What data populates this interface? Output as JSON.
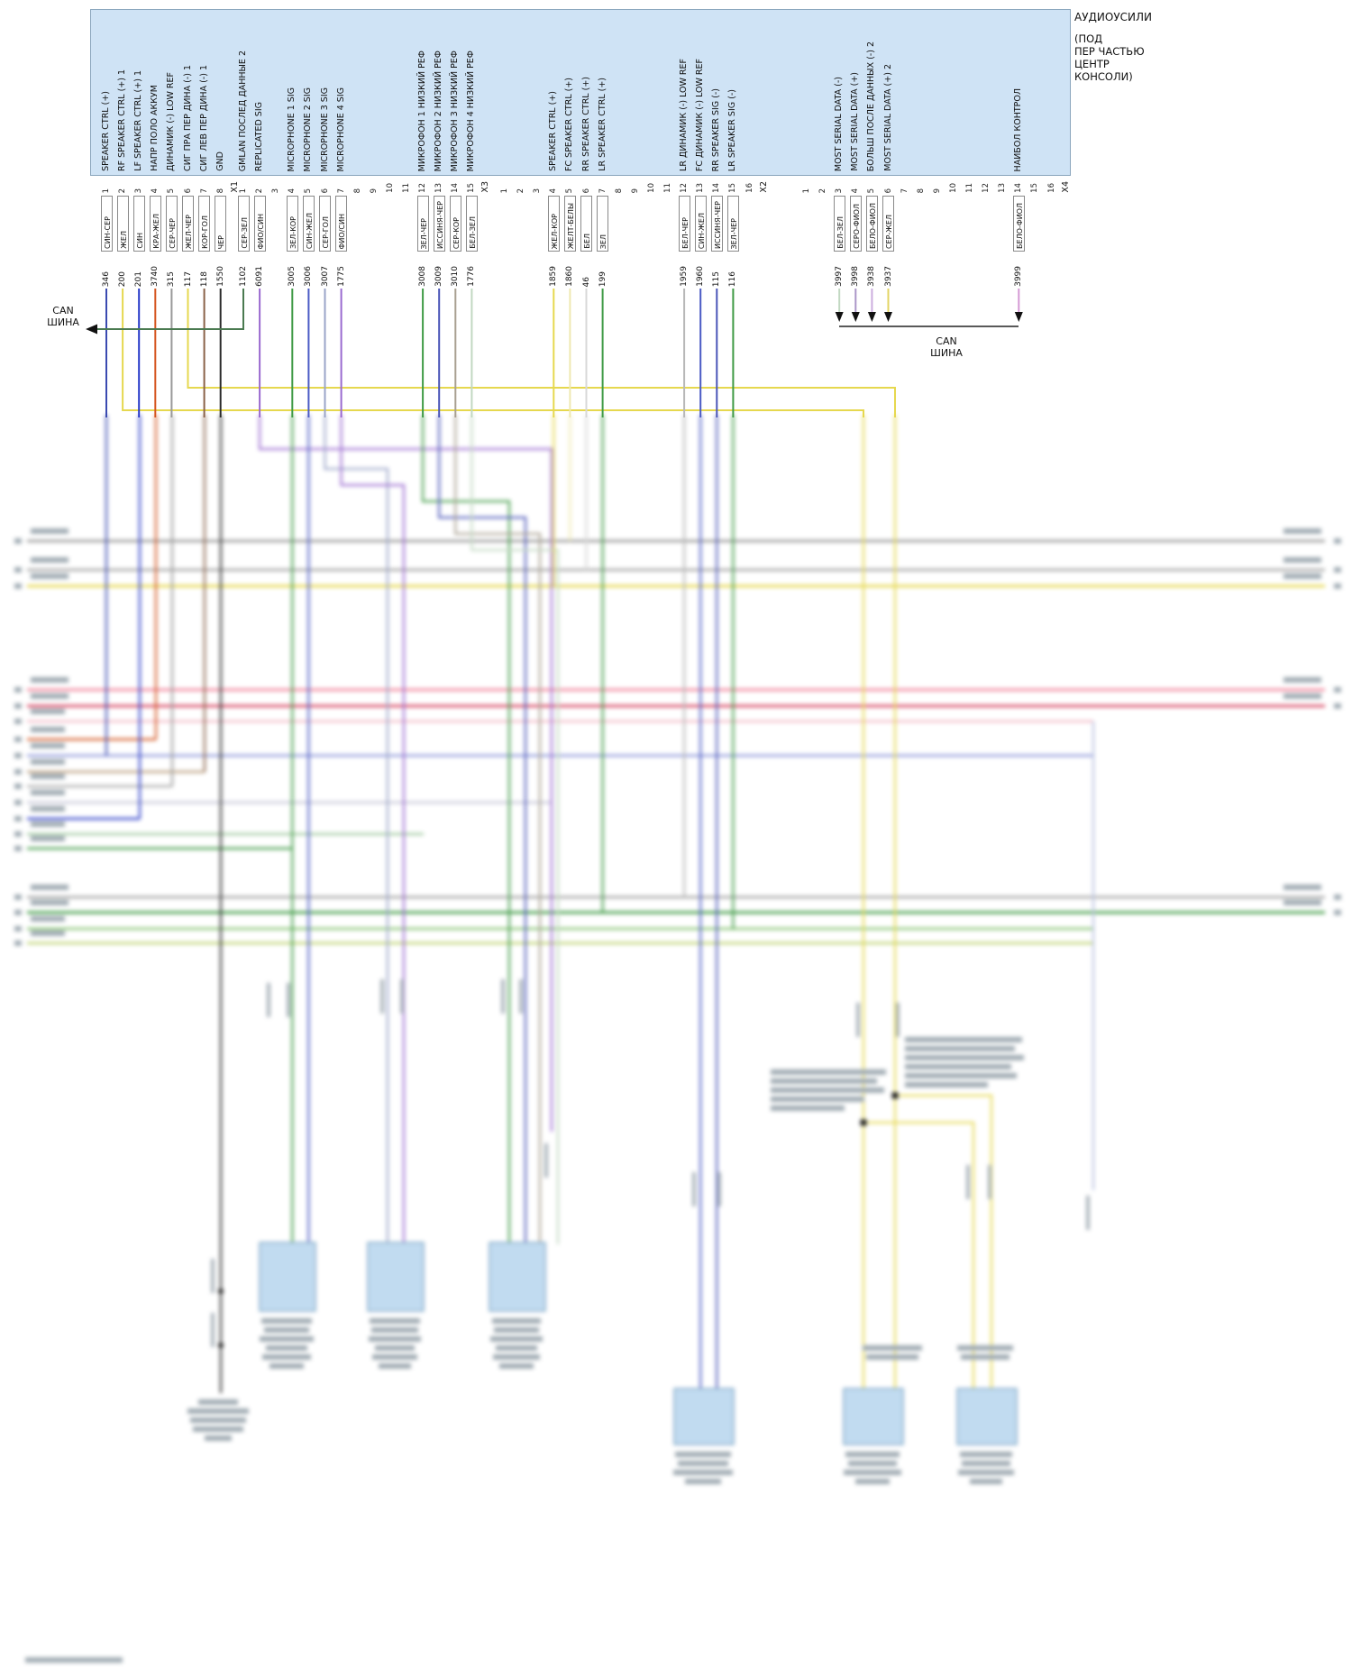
{
  "amplifier": {
    "name": "АУДИОУСИЛИ",
    "location_lines": {
      "l1": "(ПОД",
      "l2": "ПЕР ЧАСТЬЮ",
      "l3": "ЦЕНТР",
      "l4": "КОНСОЛИ)"
    }
  },
  "can_bus": {
    "left_label_1": "CAN",
    "left_label_2": "ШИНА",
    "right_label_1": "CAN",
    "right_label_2": "ШИНА"
  },
  "colors": {
    "connector_fill": "#cfe3f5",
    "component_fill": "#bdd9ef"
  },
  "connectors": [
    {
      "name": "X1",
      "pins": [
        {
          "n": "1",
          "signal": "SPEAKER CTRL (+)",
          "color": "СИН-СЕР",
          "circuit": "346",
          "hex": "#3a4ab0"
        },
        {
          "n": "2",
          "signal": "RF SPEAKER CTRL (+) 1",
          "color": "ЖЕЛ",
          "circuit": "200",
          "hex": "#e6d84f"
        },
        {
          "n": "3",
          "signal": "LF SPEAKER CTRL (+) 1",
          "color": "СИН",
          "circuit": "201",
          "hex": "#2638c8"
        },
        {
          "n": "4",
          "signal": "НАПР ПОЛО АККУМ",
          "color": "КРА-ЖЕЛ",
          "circuit": "3740",
          "hex": "#d4541e"
        },
        {
          "n": "5",
          "signal": "ДИНАМИК (-) LOW REF",
          "color": "СЕР-ЧЕР",
          "circuit": "315",
          "hex": "#999999"
        },
        {
          "n": "6",
          "signal": "СИГ ПРА ПЕР ДИНА (-) 1",
          "color": "ЖЕЛ-ЧЕР",
          "circuit": "117",
          "hex": "#e6d84f"
        },
        {
          "n": "7",
          "signal": "СИГ ЛЕВ ПЕР ДИНА (-) 1",
          "color": "КОР-ГОЛ",
          "circuit": "118",
          "hex": "#8a6248"
        },
        {
          "n": "8",
          "signal": "GND",
          "color": "ЧЕР",
          "circuit": "1550",
          "hex": "#2a2a2a"
        }
      ]
    },
    {
      "name": "X3",
      "pins": [
        {
          "n": "1",
          "signal": "GMLAN ПОСЛЕД ДАННЫЕ 2",
          "color": "СЕР-ЗЕЛ",
          "circuit": "1102",
          "hex": "#4a7a50"
        },
        {
          "n": "2",
          "signal": "REPLICATED SIG",
          "color": "ФИО/СИН",
          "circuit": "6091",
          "hex": "#9a6ad0"
        },
        {
          "n": "3"
        },
        {
          "n": "4",
          "signal": "MICROPHONE 1 SIG",
          "color": "ЗЕЛ-КОР",
          "circuit": "3005",
          "hex": "#3f9a45"
        },
        {
          "n": "5",
          "signal": "MICROPHONE 2 SIG",
          "color": "СИН-ЖЕЛ",
          "circuit": "3006",
          "hex": "#4a5ac4"
        },
        {
          "n": "6",
          "signal": "MICROPHONE 3 SIG",
          "color": "СЕР-ГОЛ",
          "circuit": "3007",
          "hex": "#9aa4c8"
        },
        {
          "n": "7",
          "signal": "MICROPHONE 4 SIG",
          "color": "ФИО/СИН",
          "circuit": "1775",
          "hex": "#9a6ad0"
        },
        {
          "n": "8"
        },
        {
          "n": "9"
        },
        {
          "n": "10"
        },
        {
          "n": "11"
        },
        {
          "n": "12",
          "signal": "МИКРОФОН 1 НИЗКИЙ РЕФ",
          "color": "ЗЕЛ-ЧЕР",
          "circuit": "3008",
          "hex": "#3f9a45"
        },
        {
          "n": "13",
          "signal": "МИКРОФОН 2 НИЗКИЙ РЕФ",
          "color": "ИССИНЯ-ЧЕР",
          "circuit": "3009",
          "hex": "#4a55b8"
        },
        {
          "n": "14",
          "signal": "МИКРОФОН 3 НИЗКИЙ РЕФ",
          "color": "СЕР-КОР",
          "circuit": "3010",
          "hex": "#a89f90"
        },
        {
          "n": "15",
          "signal": "МИКРОФОН 4 НИЗКИЙ РЕФ",
          "color": "БЕЛ-ЗЕЛ",
          "circuit": "1776",
          "hex": "#c2d8c2"
        }
      ]
    },
    {
      "name": "X2",
      "pins": [
        {
          "n": "1"
        },
        {
          "n": "2"
        },
        {
          "n": "3"
        },
        {
          "n": "4",
          "signal": "SPEAKER CTRL (+)",
          "color": "ЖЕЛ-КОР",
          "circuit": "1859",
          "hex": "#e6d84f"
        },
        {
          "n": "5",
          "signal": "FC SPEAKER CTRL (+)",
          "color": "ЖЕЛТ-БЕЛЫ",
          "circuit": "1860",
          "hex": "#eee8b0"
        },
        {
          "n": "6",
          "signal": "RR SPEAKER CTRL (+)",
          "color": "БЕЛ",
          "circuit": "46",
          "hex": "#d8d8d8"
        },
        {
          "n": "7",
          "signal": "LR SPEAKER CTRL (+)",
          "color": "ЗЕЛ",
          "circuit": "199",
          "hex": "#3f9a45"
        },
        {
          "n": "8"
        },
        {
          "n": "9"
        },
        {
          "n": "10"
        },
        {
          "n": "11"
        },
        {
          "n": "12",
          "signal": "LR ДИНАМИК (-) LOW REF",
          "color": "БЕЛ-ЧЕР",
          "circuit": "1959",
          "hex": "#b8b8b8"
        },
        {
          "n": "13",
          "signal": "FC ДИНАМИК (-) LOW REF",
          "color": "СИН-ЖЕЛ",
          "circuit": "1960",
          "hex": "#4a5ac4"
        },
        {
          "n": "14",
          "signal": "RR SPEAKER SIG (-)",
          "color": "ИССИНЯ-ЧЕР",
          "circuit": "115",
          "hex": "#4a55b8"
        },
        {
          "n": "15",
          "signal": "LR SPEAKER SIG (-)",
          "color": "ЗЕЛ-ЧЕР",
          "circuit": "116",
          "hex": "#3f9a45"
        },
        {
          "n": "16"
        }
      ]
    },
    {
      "name": "X4",
      "pins": [
        {
          "n": "1"
        },
        {
          "n": "2"
        },
        {
          "n": "3",
          "signal": "MOST SERIAL DATA (-)",
          "color": "БЕЛ-ЗЕЛ",
          "circuit": "3997",
          "hex": "#c2d8c2"
        },
        {
          "n": "4",
          "signal": "MOST SERIAL DATA (+)",
          "color": "СЕРО-ФИОЛ",
          "circuit": "3998",
          "hex": "#ab96c8"
        },
        {
          "n": "5",
          "signal": "БОЛЬШ ПОСЛЕ ДАННЫХ (-) 2",
          "color": "БЕЛО-ФИОЛ",
          "circuit": "3938",
          "hex": "#cbaede"
        },
        {
          "n": "6",
          "signal": "MOST SERIAL DATA (+) 2",
          "color": "СЕР-ЖЕЛ",
          "circuit": "3937",
          "hex": "#e3d465"
        },
        {
          "n": "7"
        },
        {
          "n": "8"
        },
        {
          "n": "9"
        },
        {
          "n": "10"
        },
        {
          "n": "11"
        },
        {
          "n": "12"
        },
        {
          "n": "13"
        },
        {
          "n": "14",
          "signal": "НАИБОЛ КОНТРОЛ",
          "color": "БЕЛО-ФИОЛ",
          "circuit": "3999",
          "hex": "#d49ad4"
        },
        {
          "n": "15"
        },
        {
          "n": "16"
        }
      ]
    }
  ]
}
